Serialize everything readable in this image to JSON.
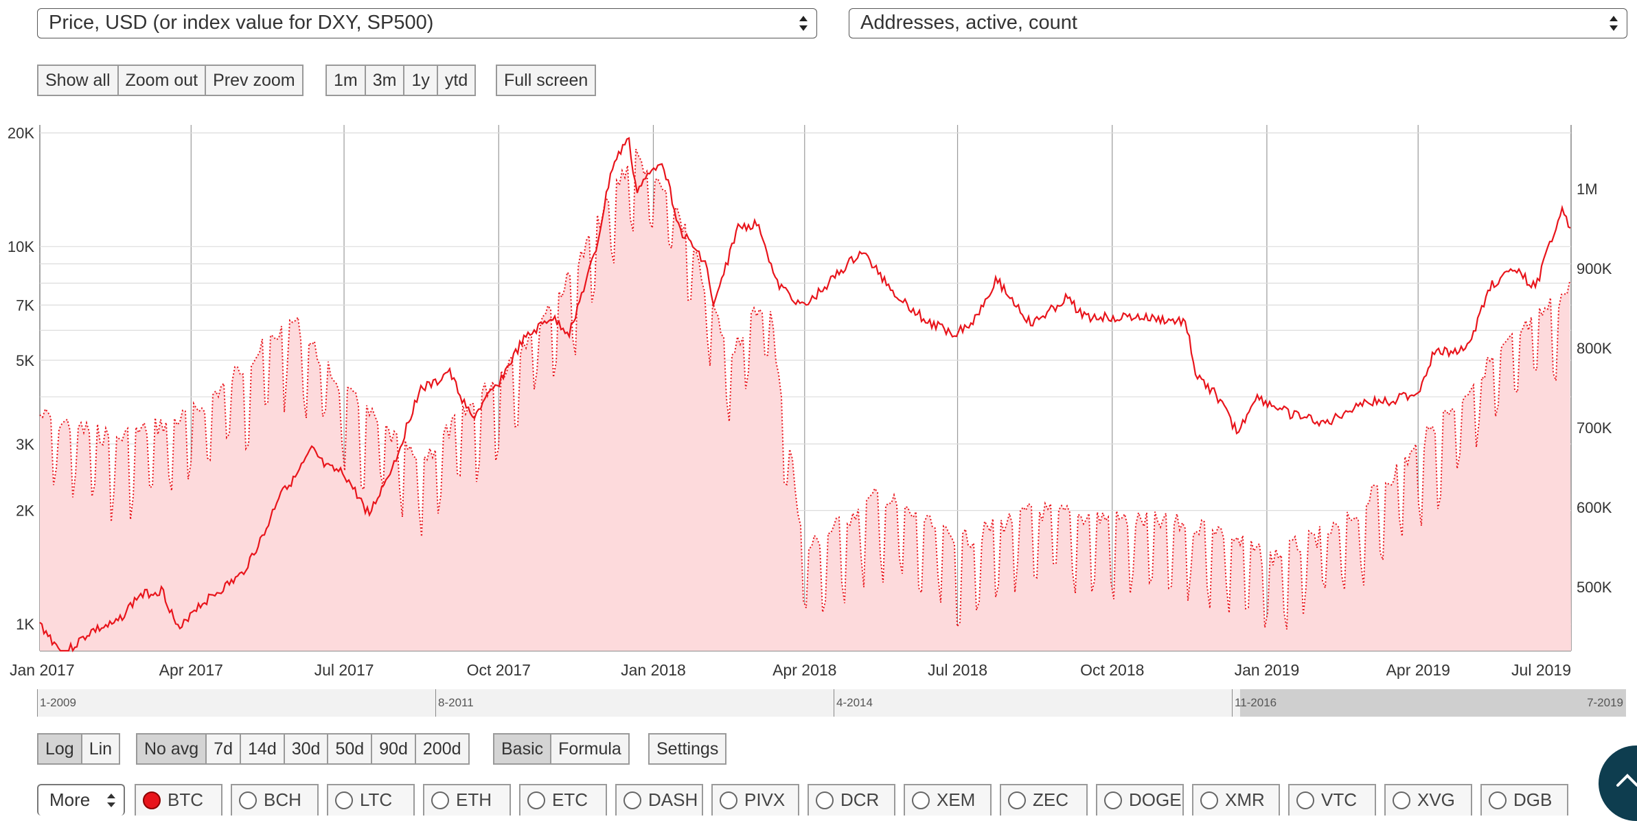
{
  "selectors": {
    "left": "Price, USD (or index value for DXY, SP500)",
    "right": "Addresses, active, count"
  },
  "zoom_buttons": [
    "Show all",
    "Zoom out",
    "Prev zoom"
  ],
  "range_buttons": [
    "1m",
    "3m",
    "1y",
    "ytd"
  ],
  "fullscreen_label": "Full screen",
  "scale_buttons": [
    "Log",
    "Lin"
  ],
  "avg_buttons": [
    "No avg",
    "7d",
    "14d",
    "30d",
    "50d",
    "90d",
    "200d"
  ],
  "mode_buttons": [
    "Basic",
    "Formula"
  ],
  "settings_label": "Settings",
  "more_label": "More",
  "coins": [
    "BTC",
    "BCH",
    "LTC",
    "ETH",
    "ETC",
    "DASH",
    "PIVX",
    "DCR",
    "XEM",
    "ZEC",
    "DOGE",
    "XMR",
    "VTC",
    "XVG",
    "DGB"
  ],
  "selected_coin": "BTC",
  "navigator_labels": [
    "1-2009",
    "8-2011",
    "4-2014",
    "11-2016",
    "7-2019"
  ],
  "colors": {
    "series": "#e8141b",
    "fill": "#fddadc",
    "fab": "#0e3d4f"
  },
  "chart_data": {
    "type": "line",
    "x_ticks": [
      "Jan 2017",
      "Apr 2017",
      "Jul 2017",
      "Oct 2017",
      "Jan 2018",
      "Apr 2018",
      "Jul 2018",
      "Oct 2018",
      "Jan 2019",
      "Apr 2019",
      "Jul 2019"
    ],
    "y_left_ticks": [
      "20K",
      "10K",
      "7K",
      "5K",
      "3K",
      "2K",
      "1K"
    ],
    "y_left_scale": "log",
    "y_left_range": [
      850,
      21000
    ],
    "y_right_ticks": [
      "1M",
      "900K",
      "800K",
      "700K",
      "600K",
      "500K"
    ],
    "y_right_range": [
      420000,
      1080000
    ],
    "x_range": [
      "2017-01-01",
      "2019-07-01"
    ],
    "grid": true,
    "series": [
      {
        "style": "solid",
        "axis": "left",
        "points": [
          [
            "2017-01-01",
            1000
          ],
          [
            "2017-01-15",
            830
          ],
          [
            "2017-02-01",
            960
          ],
          [
            "2017-02-15",
            1000
          ],
          [
            "2017-03-01",
            1190
          ],
          [
            "2017-03-15",
            1230
          ],
          [
            "2017-03-25",
            950
          ],
          [
            "2017-04-01",
            1080
          ],
          [
            "2017-04-15",
            1200
          ],
          [
            "2017-05-01",
            1350
          ],
          [
            "2017-05-15",
            1750
          ],
          [
            "2017-05-25",
            2300
          ],
          [
            "2017-06-01",
            2400
          ],
          [
            "2017-06-12",
            2900
          ],
          [
            "2017-06-20",
            2600
          ],
          [
            "2017-07-01",
            2500
          ],
          [
            "2017-07-16",
            1950
          ],
          [
            "2017-08-01",
            2750
          ],
          [
            "2017-08-15",
            4200
          ],
          [
            "2017-08-25",
            4350
          ],
          [
            "2017-09-01",
            4700
          ],
          [
            "2017-09-15",
            3500
          ],
          [
            "2017-10-01",
            4350
          ],
          [
            "2017-10-15",
            5600
          ],
          [
            "2017-11-01",
            6500
          ],
          [
            "2017-11-12",
            5900
          ],
          [
            "2017-11-28",
            9800
          ],
          [
            "2017-12-07",
            16000
          ],
          [
            "2017-12-17",
            19500
          ],
          [
            "2017-12-22",
            14000
          ],
          [
            "2018-01-06",
            17100
          ],
          [
            "2018-01-17",
            11000
          ],
          [
            "2018-02-01",
            9100
          ],
          [
            "2018-02-06",
            6900
          ],
          [
            "2018-02-20",
            11200
          ],
          [
            "2018-03-05",
            11500
          ],
          [
            "2018-03-15",
            8000
          ],
          [
            "2018-04-01",
            6900
          ],
          [
            "2018-04-15",
            8000
          ],
          [
            "2018-05-05",
            9700
          ],
          [
            "2018-05-25",
            7500
          ],
          [
            "2018-06-13",
            6300
          ],
          [
            "2018-06-29",
            5900
          ],
          [
            "2018-07-10",
            6300
          ],
          [
            "2018-07-24",
            8200
          ],
          [
            "2018-08-14",
            6200
          ],
          [
            "2018-09-04",
            7300
          ],
          [
            "2018-09-15",
            6500
          ],
          [
            "2018-10-15",
            6500
          ],
          [
            "2018-11-14",
            6300
          ],
          [
            "2018-11-20",
            4500
          ],
          [
            "2018-12-01",
            4100
          ],
          [
            "2018-12-15",
            3200
          ],
          [
            "2018-12-25",
            4000
          ],
          [
            "2019-01-15",
            3600
          ],
          [
            "2019-02-06",
            3400
          ],
          [
            "2019-02-25",
            3850
          ],
          [
            "2019-03-15",
            3900
          ],
          [
            "2019-04-01",
            4100
          ],
          [
            "2019-04-10",
            5200
          ],
          [
            "2019-05-01",
            5400
          ],
          [
            "2019-05-14",
            7900
          ],
          [
            "2019-05-28",
            8700
          ],
          [
            "2019-06-10",
            7800
          ],
          [
            "2019-06-26",
            12900
          ],
          [
            "2019-07-01",
            10800
          ]
        ]
      },
      {
        "style": "dotted",
        "axis": "right",
        "points": [
          [
            "2017-01-01",
            720000
          ],
          [
            "2017-02-15",
            690000
          ],
          [
            "2017-04-01",
            720000
          ],
          [
            "2017-06-01",
            840000
          ],
          [
            "2017-07-01",
            750000
          ],
          [
            "2017-08-15",
            660000
          ],
          [
            "2017-10-01",
            770000
          ],
          [
            "2017-11-15",
            900000
          ],
          [
            "2017-12-20",
            1050000
          ],
          [
            "2018-01-15",
            980000
          ],
          [
            "2018-02-15",
            800000
          ],
          [
            "2018-03-10",
            870000
          ],
          [
            "2018-04-01",
            550000
          ],
          [
            "2018-05-15",
            620000
          ],
          [
            "2018-07-01",
            560000
          ],
          [
            "2018-08-15",
            600000
          ],
          [
            "2018-10-01",
            590000
          ],
          [
            "2018-12-01",
            580000
          ],
          [
            "2019-01-01",
            540000
          ],
          [
            "2019-02-15",
            580000
          ],
          [
            "2019-04-01",
            680000
          ],
          [
            "2019-05-15",
            790000
          ],
          [
            "2019-07-01",
            880000
          ]
        ]
      }
    ]
  }
}
